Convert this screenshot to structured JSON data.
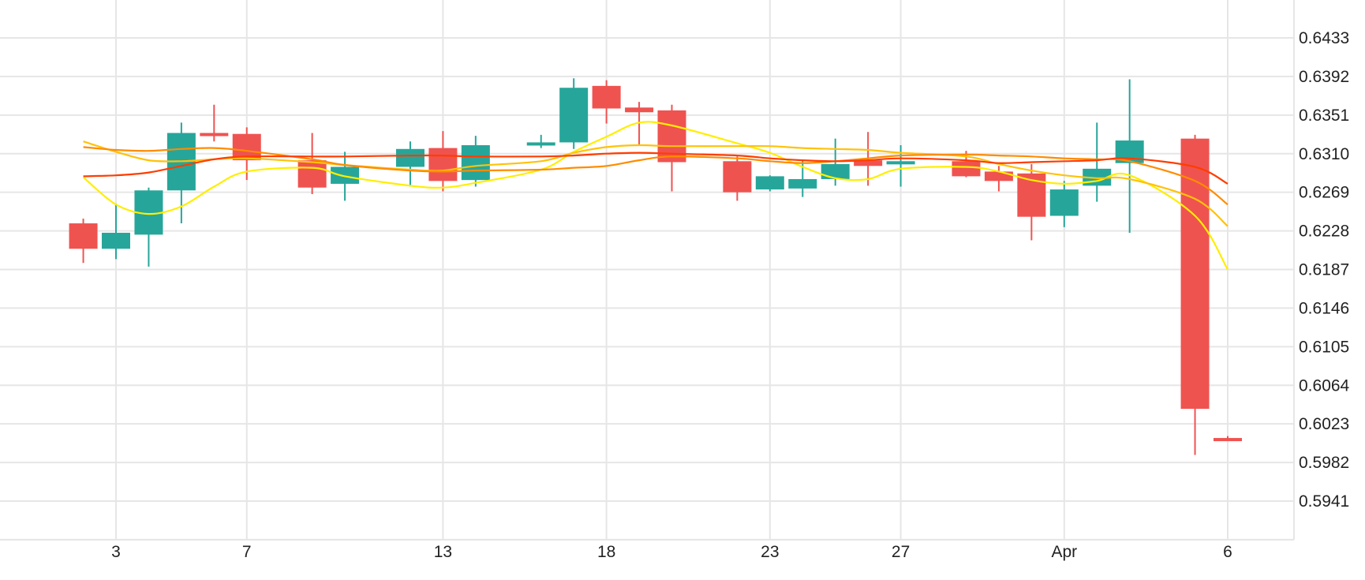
{
  "chart_data": {
    "type": "candlestick",
    "grid": true,
    "colors": {
      "up": "#26a69a",
      "down": "#ef5350",
      "grid": "#e6e6e6"
    },
    "y_ticks": [
      "0.6433",
      "0.6392",
      "0.6351",
      "0.6310",
      "0.6269",
      "0.6228",
      "0.6187",
      "0.6146",
      "0.6105",
      "0.6064",
      "0.6023",
      "0.5982",
      "0.5941"
    ],
    "x_ticks": [
      {
        "label": "3",
        "date": "2020-03-03"
      },
      {
        "label": "7",
        "date": "2020-03-07"
      },
      {
        "label": "13",
        "date": "2020-03-13"
      },
      {
        "label": "18",
        "date": "2020-03-18"
      },
      {
        "label": "23",
        "date": "2020-03-23"
      },
      {
        "label": "27",
        "date": "2020-03-27"
      },
      {
        "label": "Apr",
        "date": "2020-04-01"
      },
      {
        "label": "6",
        "date": "2020-04-06"
      }
    ],
    "candles": [
      {
        "date": "2020-03-02",
        "open": 0.6236,
        "high": 0.6241,
        "low": 0.6194,
        "close": 0.6209
      },
      {
        "date": "2020-03-03",
        "open": 0.6209,
        "high": 0.6257,
        "low": 0.6198,
        "close": 0.6226
      },
      {
        "date": "2020-03-04",
        "open": 0.6224,
        "high": 0.6274,
        "low": 0.619,
        "close": 0.6271
      },
      {
        "date": "2020-03-05",
        "open": 0.6271,
        "high": 0.6343,
        "low": 0.6236,
        "close": 0.6332
      },
      {
        "date": "2020-03-06",
        "open": 0.6332,
        "high": 0.6362,
        "low": 0.6323,
        "close": 0.6329
      },
      {
        "date": "2020-03-07",
        "open": 0.6331,
        "high": 0.6338,
        "low": 0.6282,
        "close": 0.6303
      },
      {
        "date": "2020-03-09",
        "open": 0.6303,
        "high": 0.6332,
        "low": 0.6267,
        "close": 0.6274
      },
      {
        "date": "2020-03-10",
        "open": 0.6278,
        "high": 0.6312,
        "low": 0.626,
        "close": 0.6296
      },
      {
        "date": "2020-03-12",
        "open": 0.6296,
        "high": 0.6323,
        "low": 0.6275,
        "close": 0.6315
      },
      {
        "date": "2020-03-13",
        "open": 0.6316,
        "high": 0.6334,
        "low": 0.627,
        "close": 0.6281
      },
      {
        "date": "2020-03-14",
        "open": 0.6282,
        "high": 0.6329,
        "low": 0.6275,
        "close": 0.6319
      },
      {
        "date": "2020-03-16",
        "open": 0.632,
        "high": 0.633,
        "low": 0.6316,
        "close": 0.6322
      },
      {
        "date": "2020-03-17",
        "open": 0.6322,
        "high": 0.639,
        "low": 0.6315,
        "close": 0.638
      },
      {
        "date": "2020-03-18",
        "open": 0.6382,
        "high": 0.6388,
        "low": 0.6342,
        "close": 0.6358
      },
      {
        "date": "2020-03-19",
        "open": 0.6359,
        "high": 0.6365,
        "low": 0.6319,
        "close": 0.6354
      },
      {
        "date": "2020-03-20",
        "open": 0.6356,
        "high": 0.6362,
        "low": 0.627,
        "close": 0.6301
      },
      {
        "date": "2020-03-22",
        "open": 0.6302,
        "high": 0.6307,
        "low": 0.626,
        "close": 0.6269
      },
      {
        "date": "2020-03-23",
        "open": 0.6272,
        "high": 0.6287,
        "low": 0.627,
        "close": 0.6286
      },
      {
        "date": "2020-03-24",
        "open": 0.6273,
        "high": 0.6303,
        "low": 0.6264,
        "close": 0.6283
      },
      {
        "date": "2020-03-25",
        "open": 0.6283,
        "high": 0.6326,
        "low": 0.6276,
        "close": 0.6299
      },
      {
        "date": "2020-03-26",
        "open": 0.6303,
        "high": 0.6333,
        "low": 0.6276,
        "close": 0.6297
      },
      {
        "date": "2020-03-27",
        "open": 0.63,
        "high": 0.6319,
        "low": 0.6275,
        "close": 0.6302
      },
      {
        "date": "2020-03-29",
        "open": 0.6302,
        "high": 0.6313,
        "low": 0.6285,
        "close": 0.6286
      },
      {
        "date": "2020-03-30",
        "open": 0.6291,
        "high": 0.6297,
        "low": 0.627,
        "close": 0.6281
      },
      {
        "date": "2020-03-31",
        "open": 0.6289,
        "high": 0.6299,
        "low": 0.6218,
        "close": 0.6243
      },
      {
        "date": "2020-04-01",
        "open": 0.6244,
        "high": 0.6281,
        "low": 0.6232,
        "close": 0.6272
      },
      {
        "date": "2020-04-02",
        "open": 0.6276,
        "high": 0.6343,
        "low": 0.6259,
        "close": 0.6294
      },
      {
        "date": "2020-04-03",
        "open": 0.63,
        "high": 0.6389,
        "low": 0.6226,
        "close": 0.6324
      },
      {
        "date": "2020-04-05",
        "open": 0.6326,
        "high": 0.633,
        "low": 0.599,
        "close": 0.6039
      },
      {
        "date": "2020-04-06",
        "open": 0.6008,
        "high": 0.601,
        "low": 0.6006,
        "close": 0.6007
      }
    ],
    "lines": [
      {
        "color": "#ffee00",
        "values": [
          0.6285,
          0.6256,
          0.6246,
          0.6254,
          0.6275,
          0.6291,
          0.6295,
          0.6286,
          0.6276,
          0.6274,
          0.6279,
          0.6293,
          0.6312,
          0.6328,
          0.6343,
          0.634,
          0.6321,
          0.6311,
          0.6296,
          0.6284,
          0.6283,
          0.6294,
          0.6296,
          0.6291,
          0.6282,
          0.6278,
          0.6281,
          0.6287,
          0.6244,
          0.6187
        ]
      },
      {
        "color": "#ffc20a",
        "values": [
          0.6323,
          0.6312,
          0.6303,
          0.6302,
          0.6304,
          0.6305,
          0.6301,
          0.6298,
          0.6293,
          0.6292,
          0.6297,
          0.6302,
          0.6311,
          0.6317,
          0.6319,
          0.6318,
          0.6318,
          0.6318,
          0.6316,
          0.6315,
          0.6314,
          0.6311,
          0.6307,
          0.6299,
          0.6292,
          0.6287,
          0.6284,
          0.6283,
          0.6262,
          0.6233
        ]
      },
      {
        "color": "#ff8c00",
        "values": [
          0.6317,
          0.6314,
          0.6313,
          0.6315,
          0.6316,
          0.6313,
          0.6304,
          0.6298,
          0.6292,
          0.6291,
          0.6292,
          0.6293,
          0.6295,
          0.6297,
          0.6303,
          0.6307,
          0.6305,
          0.6302,
          0.63,
          0.6302,
          0.6305,
          0.6308,
          0.6309,
          0.6308,
          0.6307,
          0.6305,
          0.6304,
          0.6302,
          0.6281,
          0.6256
        ]
      },
      {
        "color": "#ff3d00",
        "values": [
          0.6286,
          0.6287,
          0.629,
          0.6297,
          0.6304,
          0.6307,
          0.6307,
          0.6307,
          0.6308,
          0.6308,
          0.6307,
          0.6307,
          0.6308,
          0.631,
          0.6311,
          0.631,
          0.6308,
          0.6305,
          0.6303,
          0.6302,
          0.6303,
          0.6305,
          0.6303,
          0.63,
          0.6301,
          0.6302,
          0.6303,
          0.6305,
          0.6296,
          0.6278
        ]
      }
    ]
  }
}
